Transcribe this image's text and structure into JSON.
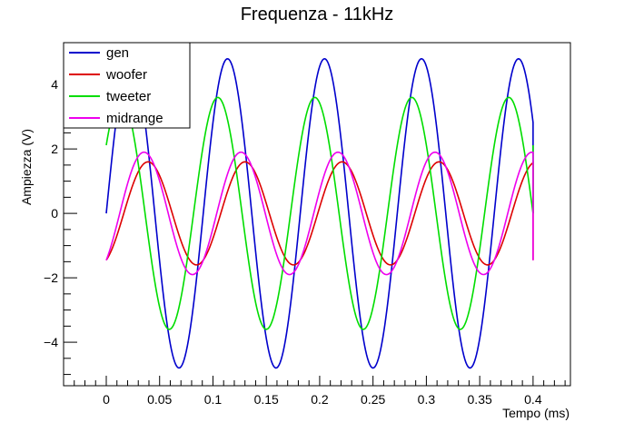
{
  "chart_data": {
    "type": "line",
    "title": "Frequenza - 11kHz",
    "xlabel": "Tempo (ms)",
    "ylabel": "Ampiezza (V)",
    "xlim": [
      -0.04,
      0.435
    ],
    "ylim": [
      -5.35,
      5.3
    ],
    "x_ticks": [
      0,
      0.05,
      0.1,
      0.15,
      0.2,
      0.25,
      0.3,
      0.35,
      0.4
    ],
    "x_tick_labels": [
      "0",
      "0.05",
      "0.1",
      "0.15",
      "0.2",
      "0.25",
      "0.3",
      "0.35",
      "0.4"
    ],
    "y_ticks": [
      -4,
      -2,
      0,
      2,
      4
    ],
    "y_tick_labels": [
      "−4",
      "−2",
      "0",
      "2",
      "4"
    ],
    "grid": false,
    "legend_position": "top-left",
    "frequency_khz": 11,
    "series": [
      {
        "name": "gen",
        "color": "#0000cc",
        "amplitude": 4.8,
        "phase_deg": 0,
        "x_start": 0.0,
        "x_end": 0.4
      },
      {
        "name": "woofer",
        "color": "#dd0000",
        "amplitude": 1.6,
        "phase_deg": -65,
        "x_start": 0.0,
        "x_end": 0.4
      },
      {
        "name": "tweeter",
        "color": "#00dd00",
        "amplitude": 3.6,
        "phase_deg": 36,
        "x_start": 0.0,
        "x_end": 0.4
      },
      {
        "name": "midrange",
        "color": "#ee00ee",
        "amplitude": 1.9,
        "phase_deg": -50,
        "x_start": 0.0,
        "x_end": 0.4
      }
    ]
  }
}
